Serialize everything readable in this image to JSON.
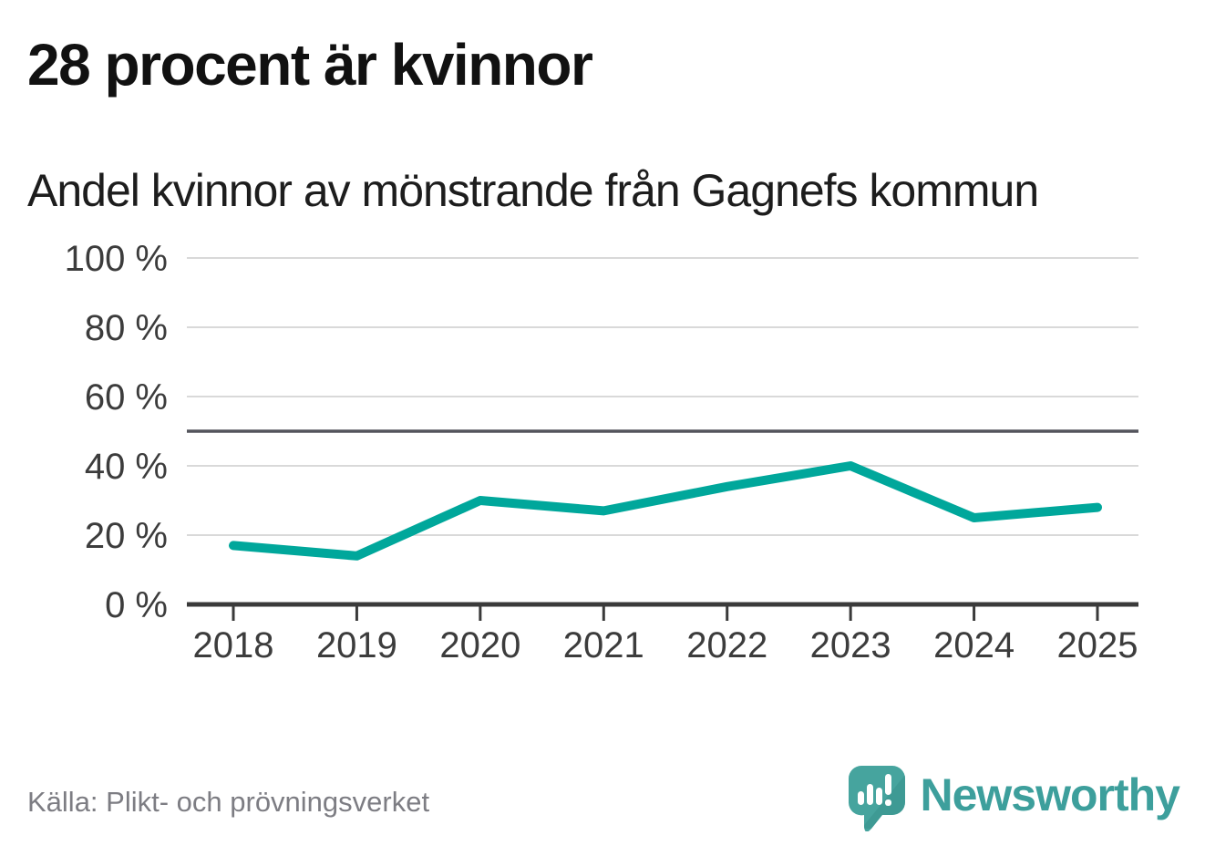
{
  "header": {
    "title": "28 procent är kvinnor",
    "subtitle": "Andel kvinnor av mönstrande från Gagnefs kommun"
  },
  "footer": {
    "source": "Källa: Plikt- och prövningsverket",
    "brand": "Newsworthy",
    "brand_icon": "newsworthy-speech-bubble-bars-icon"
  },
  "colors": {
    "line": "#00a79b",
    "grid": "#d9d9d9",
    "reference_line": "#53545c",
    "axis": "#3a3a3a",
    "tick_label": "#3c3c3c",
    "brand_teal": "#3d9f9c",
    "brand_teal_dark": "#38928c"
  },
  "chart_data": {
    "type": "line",
    "title": "28 procent är kvinnor",
    "subtitle": "Andel kvinnor av mönstrande från Gagnefs kommun",
    "categories": [
      "2018",
      "2019",
      "2020",
      "2021",
      "2022",
      "2023",
      "2024",
      "2025"
    ],
    "series": [
      {
        "name": "Andel kvinnor av mönstrande från Gagnefs kommun",
        "values": [
          17,
          14,
          30,
          27,
          34,
          40,
          25,
          28
        ]
      }
    ],
    "unit": "%",
    "ylim": [
      0,
      100
    ],
    "y_ticks": [
      0,
      20,
      40,
      60,
      80,
      100
    ],
    "y_tick_labels": [
      "0 %",
      "20 %",
      "40 %",
      "60 %",
      "80 %",
      "100 %"
    ],
    "reference_line": 50,
    "grid": true,
    "legend_position": "none",
    "xlabel": "",
    "ylabel": ""
  }
}
